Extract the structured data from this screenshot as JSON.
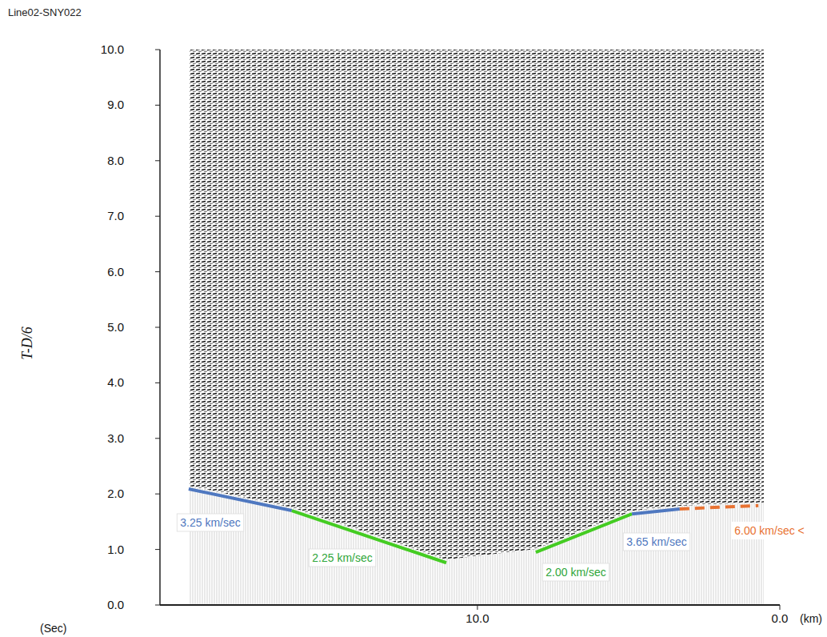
{
  "chart_data": {
    "type": "line",
    "title": "Line02-SNY022",
    "y_label": "T-D/6",
    "y_unit": "(Sec)",
    "x_unit": "(km)",
    "xlim": [
      20.5,
      0
    ],
    "xticks": [
      {
        "value": 10,
        "label": "10.0"
      },
      {
        "value": 0,
        "label": "0.0"
      }
    ],
    "ylim": [
      0,
      10
    ],
    "yticks": [
      {
        "value": 0,
        "label": "0.0"
      },
      {
        "value": 1,
        "label": "1.0"
      },
      {
        "value": 2,
        "label": "2.0"
      },
      {
        "value": 3,
        "label": "3.0"
      },
      {
        "value": 4,
        "label": "4.0"
      },
      {
        "value": 5,
        "label": "5.0"
      },
      {
        "value": 6,
        "label": "6.0"
      },
      {
        "value": 7,
        "label": "7.0"
      },
      {
        "value": 8,
        "label": "8.0"
      },
      {
        "value": 9,
        "label": "9.0"
      },
      {
        "value": 10,
        "label": "10.0"
      }
    ],
    "grid": false,
    "series": [
      {
        "name": "3.25 km/sec",
        "color": "#4f78c0",
        "line_style": "solid",
        "x": [
          19.55,
          16.14
        ],
        "values": [
          2.09,
          1.7
        ]
      },
      {
        "name": "2.25 km/sec",
        "color": "#44cc22",
        "line_style": "solid",
        "x": [
          16.14,
          11.03
        ],
        "values": [
          1.7,
          0.76
        ]
      },
      {
        "name": "2.00 km/sec",
        "color": "#44cc22",
        "line_style": "solid",
        "x": [
          8.07,
          4.89
        ],
        "values": [
          0.95,
          1.64
        ]
      },
      {
        "name": "3.65 km/sec",
        "color": "#4f78c0",
        "line_style": "solid",
        "x": [
          4.89,
          3.31
        ],
        "values": [
          1.64,
          1.73
        ]
      },
      {
        "name": "6.00 km/sec <",
        "color": "#e87232",
        "line_style": "dashed",
        "x": [
          3.31,
          0.71
        ],
        "values": [
          1.73,
          1.79
        ]
      }
    ]
  }
}
